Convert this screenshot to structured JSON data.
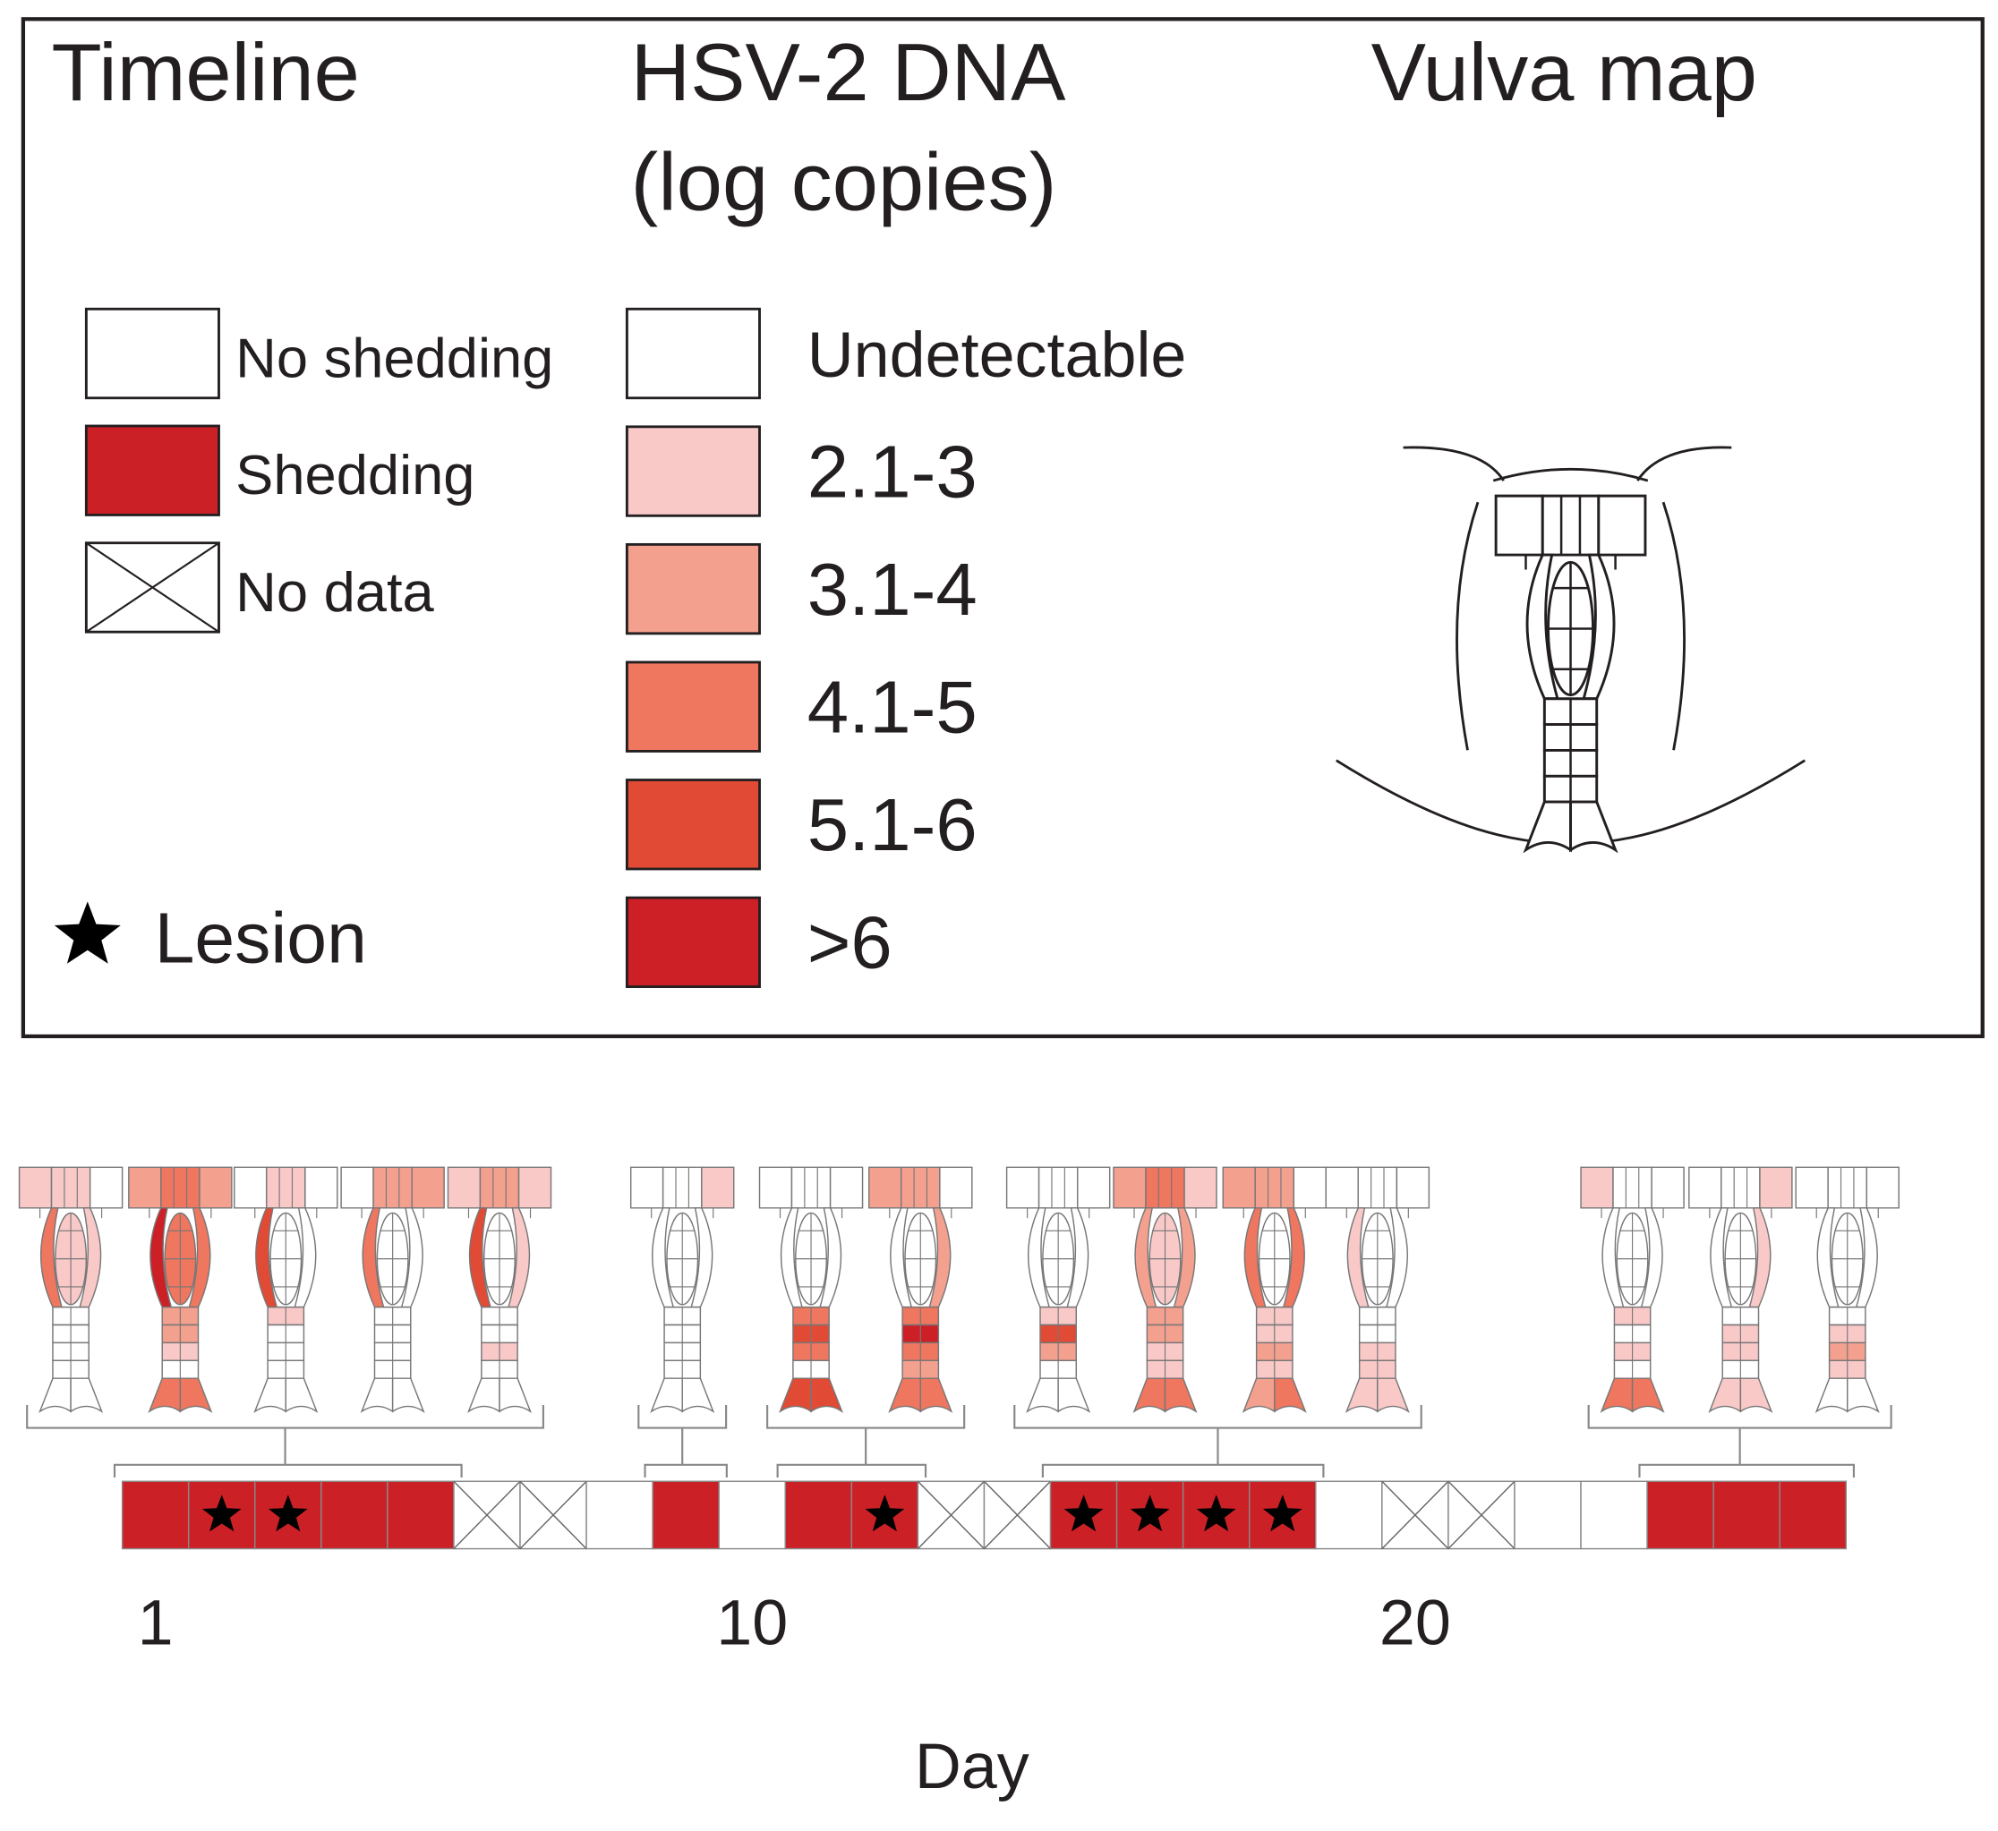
{
  "legend": {
    "timeline": {
      "title": "Timeline",
      "items": [
        {
          "label": "No shedding",
          "color": "#ffffff"
        },
        {
          "label": "Shedding",
          "color": "#cc2027"
        },
        {
          "label": "No data",
          "color": "#ffffff"
        }
      ],
      "lesion": "Lesion"
    },
    "dna": {
      "title": [
        "HSV-2 DNA",
        "(log copies)"
      ],
      "levels": [
        {
          "label": "Undetectable",
          "color": "#ffffff"
        },
        {
          "label": "2.1-3",
          "color": "#f9c9c8"
        },
        {
          "label": "3.1-4",
          "color": "#f4a08f"
        },
        {
          "label": "4.1-5",
          "color": "#ef765f"
        },
        {
          "label": "5.1-6",
          "color": "#e14a35"
        },
        {
          "label": ">6",
          "color": "#cc1f26"
        }
      ]
    },
    "map": {
      "title": "Vulva map"
    }
  },
  "timeline": {
    "days": [
      "Shedding",
      "Shedding",
      "Shedding",
      "Shedding",
      "Shedding",
      "No data",
      "No data",
      "No shedding",
      "Shedding",
      "No shedding",
      "Shedding",
      "Shedding",
      "No data",
      "No data",
      "Shedding",
      "Shedding",
      "Shedding",
      "Shedding",
      "No shedding",
      "No data",
      "No data",
      "No shedding",
      "No shedding",
      "Shedding",
      "Shedding",
      "Shedding"
    ],
    "lesion_days": [
      2,
      3,
      12,
      15,
      16,
      17,
      18
    ],
    "ticks": [
      1,
      10,
      20
    ],
    "axis_label": "Day"
  },
  "maps": [
    {
      "day": 1,
      "levels": [
        1,
        1,
        0,
        3,
        1,
        1,
        0,
        0,
        0,
        0,
        0,
        0
      ]
    },
    {
      "day": 2,
      "levels": [
        2,
        3,
        2,
        5,
        3,
        3,
        2,
        2,
        1,
        0,
        3,
        3
      ]
    },
    {
      "day": 3,
      "levels": [
        0,
        1,
        0,
        4,
        0,
        0,
        1,
        0,
        0,
        0,
        0,
        0
      ]
    },
    {
      "day": 4,
      "levels": [
        0,
        2,
        2,
        3,
        0,
        0,
        0,
        0,
        0,
        0,
        0,
        0
      ]
    },
    {
      "day": 5,
      "levels": [
        1,
        2,
        1,
        4,
        1,
        0,
        0,
        0,
        1,
        0,
        0,
        0
      ]
    },
    {
      "day": 9,
      "levels": [
        0,
        0,
        1,
        0,
        0,
        0,
        0,
        0,
        0,
        0,
        0,
        0
      ]
    },
    {
      "day": 11,
      "levels": [
        0,
        0,
        0,
        0,
        0,
        0,
        3,
        4,
        3,
        0,
        4,
        4
      ]
    },
    {
      "day": 12,
      "levels": [
        2,
        2,
        0,
        0,
        2,
        0,
        3,
        5,
        3,
        2,
        3,
        3
      ]
    },
    {
      "day": 15,
      "levels": [
        0,
        0,
        0,
        0,
        0,
        0,
        1,
        4,
        2,
        0,
        0,
        0
      ]
    },
    {
      "day": 16,
      "levels": [
        2,
        3,
        1,
        2,
        2,
        1,
        2,
        2,
        1,
        1,
        3,
        3
      ]
    },
    {
      "day": 17,
      "levels": [
        2,
        2,
        0,
        3,
        3,
        0,
        1,
        1,
        2,
        1,
        2,
        3
      ]
    },
    {
      "day": 18,
      "levels": [
        0,
        0,
        0,
        1,
        0,
        0,
        0,
        0,
        1,
        1,
        1,
        1
      ]
    },
    {
      "day": 24,
      "levels": [
        1,
        0,
        0,
        0,
        0,
        0,
        1,
        0,
        1,
        0,
        3,
        3
      ]
    },
    {
      "day": 25,
      "levels": [
        0,
        0,
        1,
        0,
        1,
        0,
        0,
        1,
        1,
        0,
        1,
        1
      ]
    },
    {
      "day": 26,
      "levels": [
        0,
        0,
        0,
        0,
        0,
        0,
        0,
        1,
        2,
        1,
        0,
        0
      ]
    }
  ]
}
